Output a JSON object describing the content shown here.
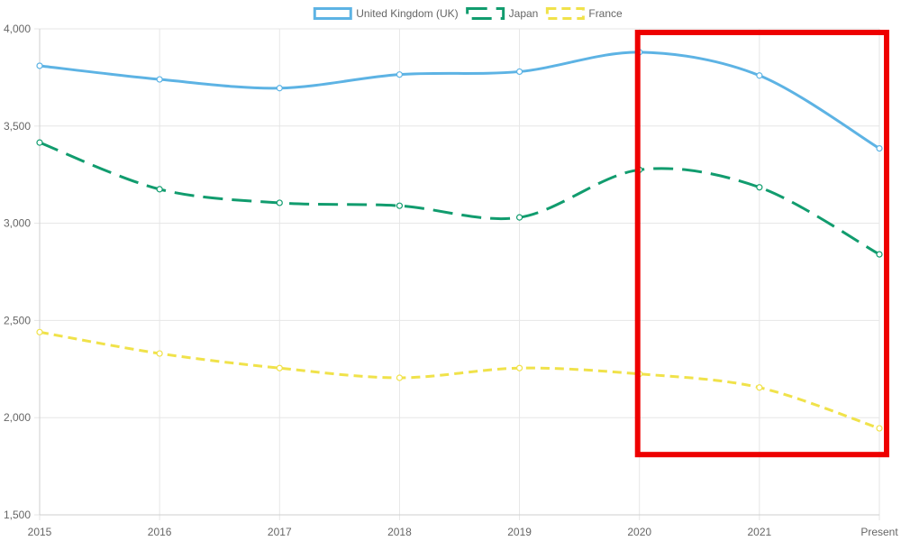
{
  "chart_data": {
    "type": "line",
    "title": "",
    "xlabel": "",
    "ylabel": "",
    "categories": [
      "2015",
      "2016",
      "2017",
      "2018",
      "2019",
      "2020",
      "2021",
      "Present"
    ],
    "ylim": [
      1500,
      4000
    ],
    "yticks": [
      "1,500",
      "2,000",
      "2,500",
      "3,000",
      "3,500",
      "4,000"
    ],
    "grid": true,
    "legend_position": "top-center",
    "series": [
      {
        "name": "United Kingdom (UK)",
        "color": "#5db3e4",
        "style": "solid",
        "values": [
          3810,
          3740,
          3695,
          3765,
          3780,
          3880,
          3760,
          3385
        ]
      },
      {
        "name": "Japan",
        "color": "#119c6e",
        "style": "long-dash",
        "values": [
          3415,
          3175,
          3105,
          3090,
          3030,
          3275,
          3185,
          2840
        ]
      },
      {
        "name": "France",
        "color": "#f0e24a",
        "style": "short-dash",
        "values": [
          2440,
          2330,
          2255,
          2205,
          2255,
          2225,
          2155,
          1945
        ]
      }
    ],
    "annotations": [
      {
        "type": "highlight-box",
        "color": "#ee0000",
        "x_from": "2020",
        "x_to": "Present",
        "y_from": 1810,
        "y_to": 4000
      }
    ]
  }
}
